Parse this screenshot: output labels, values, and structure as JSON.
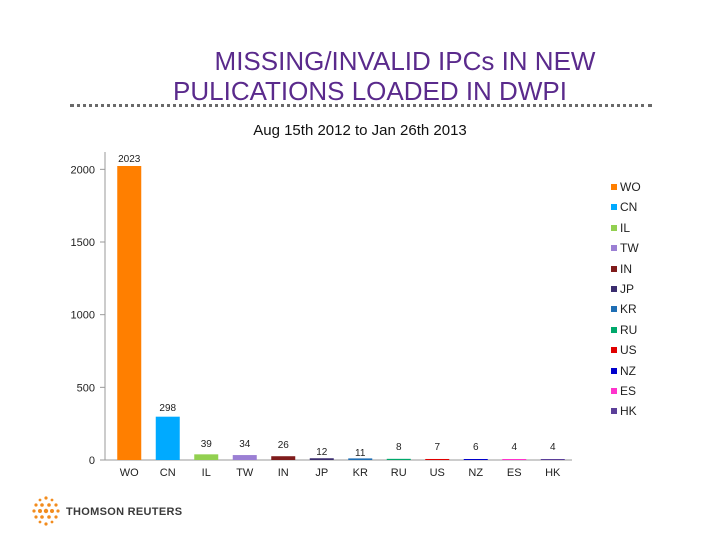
{
  "header": {
    "title_line1": "MISSING/INVALID  IPCs IN NEW",
    "title_line2": "PULICATIONS LOADED IN  DWPI",
    "subtitle": "Aug 15th 2012 to Jan 26th 2013"
  },
  "chart_data": {
    "type": "bar",
    "title": "MISSING/INVALID  IPCs IN NEW PULICATIONS LOADED IN  DWPI",
    "subtitle": "Aug 15th 2012 to Jan 26th 2013",
    "categories": [
      "WO",
      "CN",
      "IL",
      "TW",
      "IN",
      "JP",
      "KR",
      "RU",
      "US",
      "NZ",
      "ES",
      "HK"
    ],
    "values": [
      2023,
      298,
      39,
      34,
      26,
      12,
      11,
      8,
      7,
      6,
      4,
      4
    ],
    "colors": [
      "#ff7f00",
      "#00aaff",
      "#92d050",
      "#9b7fd4",
      "#7f1b1b",
      "#3b2d6e",
      "#1f6eb4",
      "#00a86b",
      "#e00000",
      "#0000cc",
      "#ff33cc",
      "#5b3f99"
    ],
    "xlabel": "",
    "ylabel": "",
    "ylim": [
      0,
      2050
    ],
    "yticks": [
      0,
      500,
      1000,
      1500,
      2000
    ],
    "grid": false,
    "legend_position": "right"
  },
  "branding": {
    "logo_icon": "thomson-reuters-dot-sphere",
    "logo_text": "THOMSON REUTERS"
  }
}
